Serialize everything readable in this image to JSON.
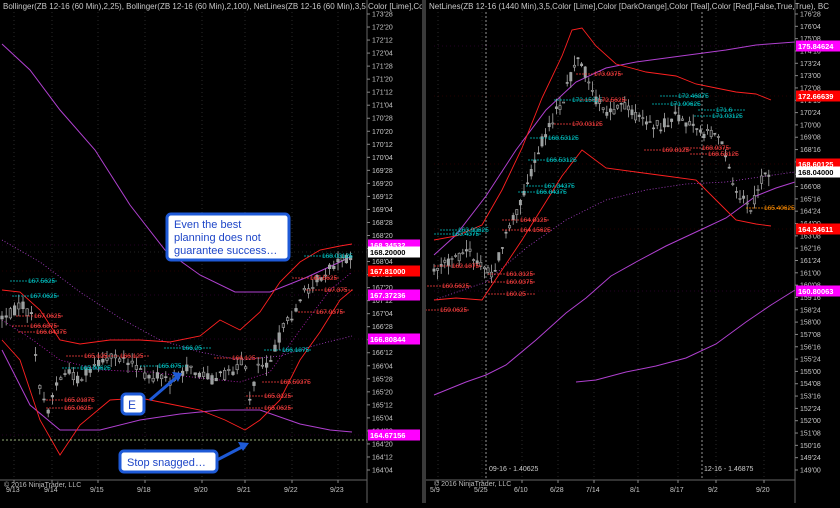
{
  "left_panel": {
    "header": "Bollinger(ZB 12-16 (60 Min),2,25), Bollinger(ZB 12-16 (60 Min),2,100), NetLines(ZB 12-16 (60 Min),3,5,Color [Lime],Color",
    "copyright": "© 2016 NinjaTrader, LLC",
    "callout_top": [
      "Even the best",
      "planning does not",
      "guarantee success…"
    ],
    "callout_entry": "E",
    "callout_stop": "Stop snagged…",
    "price_tags": [
      {
        "label": "168.34532",
        "color": "#ff00ff",
        "text_color": "#ffffff"
      },
      {
        "label": "168.20000",
        "color": "#ffffff",
        "text_color": "#000000"
      },
      {
        "label": "167.81000",
        "color": "#ff0000",
        "text_color": "#ffffff"
      },
      {
        "label": "167.37236",
        "color": "#ff00ff",
        "text_color": "#ffffff"
      },
      {
        "label": "166.80844",
        "color": "#ff00ff",
        "text_color": "#ffffff"
      },
      {
        "label": "164.67156",
        "color": "#ff00ff",
        "text_color": "#ffffff"
      }
    ]
  },
  "right_panel": {
    "header": "NetLines(ZB 12-16 (1440 Min),3,5,Color [Lime],Color [DarkOrange],Color [Teal],Color [Red],False,True,True), BC",
    "copyright": "© 2016 NinjaTrader, LLC",
    "divider_labels": [
      "09-16 - 1.40625",
      "12-16 - 1.46875"
    ],
    "price_tags": [
      {
        "label": "175.84624",
        "color": "#ff00ff",
        "text_color": "#ffffff"
      },
      {
        "label": "172.66639",
        "color": "#ff0000",
        "text_color": "#ffffff"
      },
      {
        "label": "168.60125",
        "color": "#ff0000",
        "text_color": "#ffffff"
      },
      {
        "label": "168.04000",
        "color": "#ffffff",
        "text_color": "#000000"
      },
      {
        "label": "164.34611",
        "color": "#ff0000",
        "text_color": "#ffffff"
      },
      {
        "label": "160.80063",
        "color": "#ff00ff",
        "text_color": "#ffffff"
      }
    ]
  },
  "chart_data": [
    {
      "type": "candlestick",
      "instrument": "ZB 12-16 (60 Min)",
      "x_ticks": [
        "9/13",
        "9/14",
        "9/15",
        "9/18",
        "9/20",
        "9/21",
        "9/22",
        "9/23"
      ],
      "y_ticks": [
        "173'28",
        "172'20",
        "172'12",
        "172'04",
        "171'28",
        "171'20",
        "171'12",
        "171'04",
        "170'28",
        "170'20",
        "170'12",
        "170'04",
        "169'28",
        "169'20",
        "169'12",
        "169'04",
        "168'28",
        "168'20",
        "168'12",
        "168'04",
        "167'28",
        "167'20",
        "167'12",
        "167'04",
        "166'28",
        "166'20",
        "166'12",
        "166'04",
        "165'28",
        "165'20",
        "165'12",
        "165'04",
        "164'28",
        "164'20",
        "164'12",
        "164'04"
      ],
      "ylim": [
        163.9,
        174.0
      ],
      "net_line_labels": [
        {
          "text": "167.5625",
          "color": "#00c8c8"
        },
        {
          "text": "167.0625",
          "color": "#00c8c8"
        },
        {
          "text": "167.0625",
          "color": "#ff4040"
        },
        {
          "text": "166.84375",
          "color": "#ff4040"
        },
        {
          "text": "166.6875",
          "color": "#ff4040"
        },
        {
          "text": "166.125",
          "color": "#ff4040"
        },
        {
          "text": "166.25",
          "color": "#00c8c8"
        },
        {
          "text": "165.125",
          "color": "#ff4040"
        },
        {
          "text": "166.125",
          "color": "#ff4040"
        },
        {
          "text": "165.90625",
          "color": "#00c8c8"
        },
        {
          "text": "165.875",
          "color": "#00c8c8"
        },
        {
          "text": "165.21875",
          "color": "#ff4040"
        },
        {
          "text": "165.0625",
          "color": "#ff4040"
        },
        {
          "text": "166.1875",
          "color": "#00c8c8"
        },
        {
          "text": "165.59375",
          "color": "#ff4040"
        },
        {
          "text": "165.3125",
          "color": "#ff4040"
        },
        {
          "text": "165.0625",
          "color": "#ff4040"
        },
        {
          "text": "168.03125",
          "color": "#00c8c8"
        },
        {
          "text": "167.5625",
          "color": "#ff4040"
        },
        {
          "text": "167.375",
          "color": "#ff4040"
        },
        {
          "text": "167.9375",
          "color": "#ff4040"
        }
      ]
    },
    {
      "type": "candlestick",
      "instrument": "ZB 12-16 (1440 Min)",
      "x_ticks": [
        "5/9",
        "5/25",
        "6/10",
        "6/28",
        "7/14",
        "8/1",
        "8/17",
        "9/2",
        "9/20"
      ],
      "y_ticks": [
        "176'28",
        "176'04",
        "175'08",
        "174'16",
        "173'24",
        "173'00",
        "172'08",
        "171'16",
        "170'24",
        "170'00",
        "169'08",
        "168'16",
        "167'24",
        "167'00",
        "166'08",
        "165'16",
        "164'24",
        "164'00",
        "163'08",
        "162'16",
        "161'24",
        "161'00",
        "160'08",
        "159'16",
        "158'24",
        "158'00",
        "157'08",
        "156'16",
        "155'24",
        "155'00",
        "154'08",
        "153'16",
        "152'24",
        "152'00",
        "151'08",
        "150'16",
        "149'24",
        "149'00"
      ],
      "ylim": [
        148.7,
        177.3
      ],
      "net_line_labels": [
        {
          "text": "163.4375",
          "color": "#00c8c8"
        },
        {
          "text": "163.90625",
          "color": "#00c8c8"
        },
        {
          "text": "162.1875",
          "color": "#ff4040"
        },
        {
          "text": "161.3125",
          "color": "#ff4040"
        },
        {
          "text": "160.9375",
          "color": "#ff4040"
        },
        {
          "text": "160.5625",
          "color": "#ff4040"
        },
        {
          "text": "160.25",
          "color": "#ff4040"
        },
        {
          "text": "159.0625",
          "color": "#ff4040"
        },
        {
          "text": "164.8125",
          "color": "#ff4040"
        },
        {
          "text": "164.15625",
          "color": "#ff4040"
        },
        {
          "text": "166.53125",
          "color": "#00c8c8"
        },
        {
          "text": "167.34375",
          "color": "#00c8c8"
        },
        {
          "text": "166.84375",
          "color": "#00c8c8"
        },
        {
          "text": "168.53125",
          "color": "#00c8c8"
        },
        {
          "text": "172.15625",
          "color": "#00c8c8"
        },
        {
          "text": "173.9375",
          "color": "#ff4040"
        },
        {
          "text": "170.03125",
          "color": "#ff4040"
        },
        {
          "text": "172.5625",
          "color": "#ff4040"
        },
        {
          "text": "172.46875",
          "color": "#00c8c8"
        },
        {
          "text": "171.90625",
          "color": "#00c8c8"
        },
        {
          "text": "171.6",
          "color": "#00c8c8"
        },
        {
          "text": "171.03125",
          "color": "#00c8c8"
        },
        {
          "text": "169.8125",
          "color": "#ff4040"
        },
        {
          "text": "168.9375",
          "color": "#ff4040"
        },
        {
          "text": "168.53125",
          "color": "#ff4040"
        },
        {
          "text": "165.40625",
          "color": "#ff8c00"
        }
      ]
    }
  ]
}
